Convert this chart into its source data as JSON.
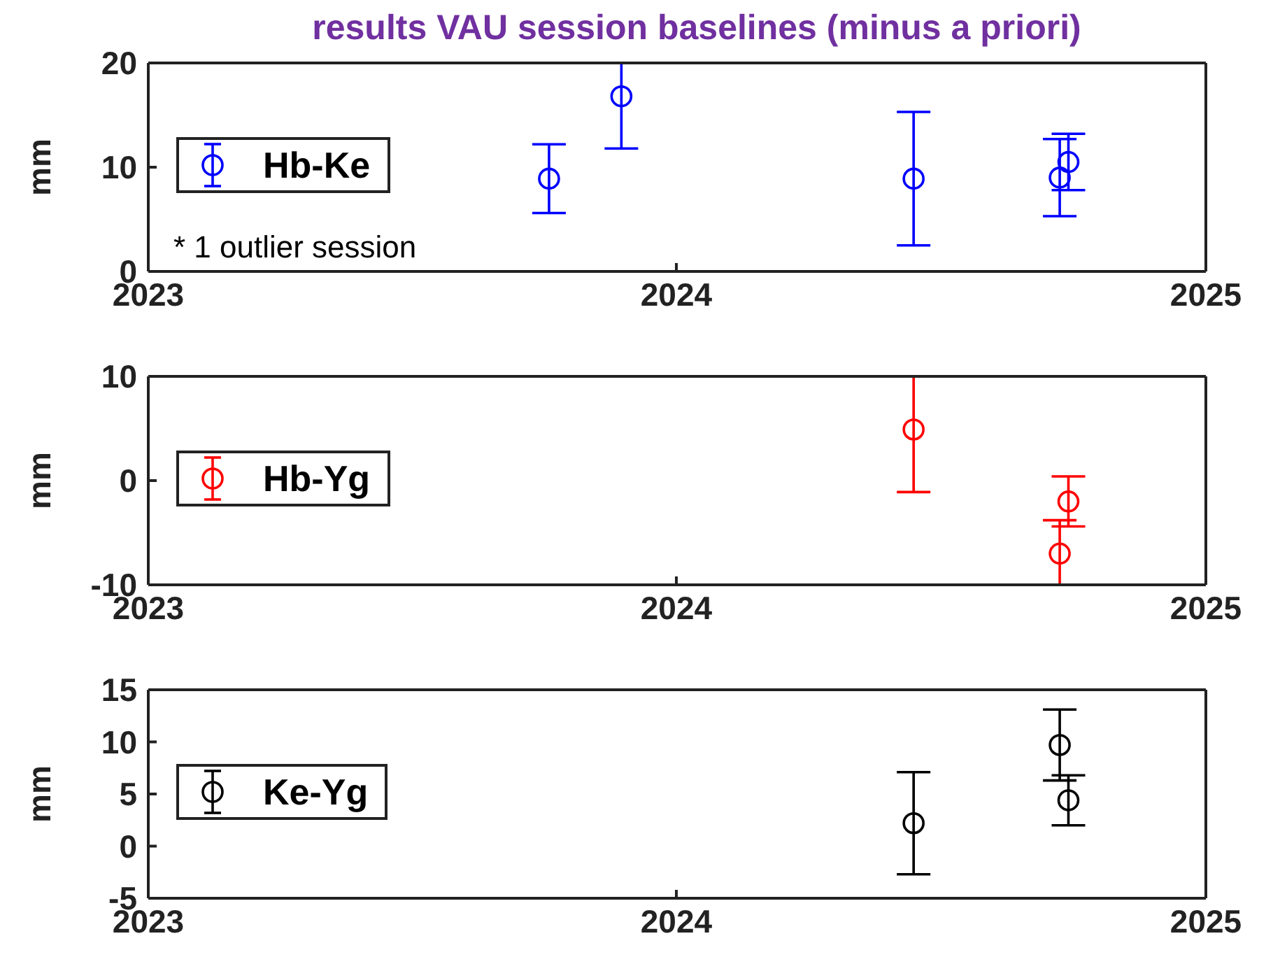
{
  "chart_data": [
    {
      "type": "scatter",
      "title": "results VAU session baselines (minus a priori)",
      "ylabel": "mm",
      "xlim": [
        "2023",
        "2025"
      ],
      "xticks": [
        "2023",
        "2024",
        "2025"
      ],
      "ylim": [
        0,
        20
      ],
      "yticks": [
        0,
        10,
        20
      ],
      "legend": "left",
      "marker": "circle",
      "annotations": [
        "* 1 outlier session"
      ],
      "series": [
        {
          "name": "Hb-Ke",
          "color": "#0000ff",
          "x": [
            "2023-10-05",
            "2023-11-24",
            "2024-06-13",
            "2024-09-22",
            "2024-09-28"
          ],
          "values": [
            8.9,
            16.8,
            8.9,
            9.0,
            10.5
          ],
          "errors": [
            3.3,
            [
              11.8,
              20
            ],
            6.4,
            3.7,
            2.7
          ]
        }
      ]
    },
    {
      "type": "scatter",
      "ylabel": "mm",
      "xlim": [
        "2023",
        "2025"
      ],
      "xticks": [
        "2023",
        "2024",
        "2025"
      ],
      "ylim": [
        -10,
        10
      ],
      "yticks": [
        -10,
        0,
        10
      ],
      "legend": "left",
      "marker": "circle",
      "series": [
        {
          "name": "Hb-Yg",
          "color": "#ff0000",
          "x": [
            "2024-06-13",
            "2024-09-22",
            "2024-09-28"
          ],
          "values": [
            4.9,
            -7.0,
            -2.0
          ],
          "errors": [
            [
              -1.1,
              10
            ],
            [
              -10,
              -3.8
            ],
            2.4
          ]
        }
      ]
    },
    {
      "type": "scatter",
      "ylabel": "mm",
      "xlim": [
        "2023",
        "2025"
      ],
      "xticks": [
        "2023",
        "2024",
        "2025"
      ],
      "ylim": [
        -5,
        15
      ],
      "yticks": [
        -5,
        0,
        5,
        10,
        15
      ],
      "legend": "left",
      "marker": "circle",
      "series": [
        {
          "name": "Ke-Yg",
          "color": "#000000",
          "x": [
            "2024-06-13",
            "2024-09-22",
            "2024-09-28"
          ],
          "values": [
            2.2,
            9.7,
            4.4
          ],
          "errors": [
            4.9,
            3.4,
            2.4
          ]
        }
      ]
    }
  ]
}
